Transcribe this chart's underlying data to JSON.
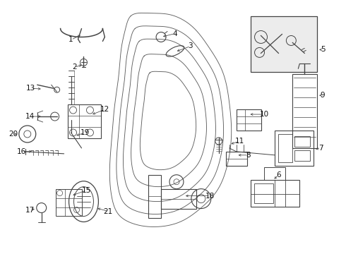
{
  "bg_color": "#ffffff",
  "line_color": "#444444",
  "label_color": "#111111",
  "font_size": 7.5
}
